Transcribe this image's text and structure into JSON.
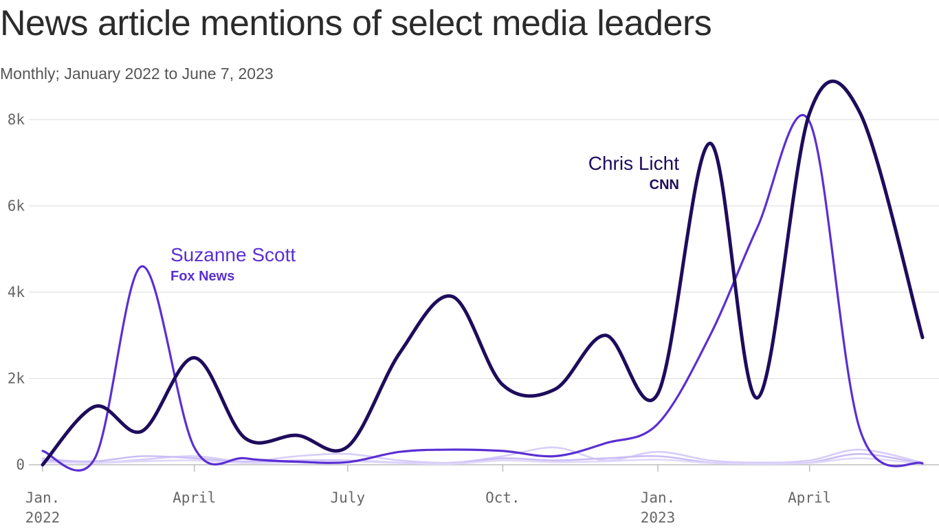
{
  "title": "News article mentions of select media leaders",
  "subtitle": "Monthly; January 2022 to June 7, 2023",
  "chart_data": {
    "type": "line",
    "title": "News article mentions of select media leaders",
    "subtitle": "Monthly; January 2022 to June 7, 2023",
    "xlabel": "",
    "ylabel": "",
    "ylim": [
      0,
      8000
    ],
    "y_ticks": [
      {
        "value": 0,
        "label": "0"
      },
      {
        "value": 2000,
        "label": "2k"
      },
      {
        "value": 4000,
        "label": "4k"
      },
      {
        "value": 6000,
        "label": "6k"
      },
      {
        "value": 8000,
        "label": "8k"
      }
    ],
    "x": [
      "2022-01-01",
      "2022-02-01",
      "2022-03-01",
      "2022-04-01",
      "2022-05-01",
      "2022-06-01",
      "2022-07-01",
      "2022-08-01",
      "2022-09-01",
      "2022-10-01",
      "2022-11-01",
      "2022-12-01",
      "2023-01-01",
      "2023-02-01",
      "2023-03-01",
      "2023-04-01",
      "2023-05-01",
      "2023-06-07"
    ],
    "x_ticks": [
      {
        "x": "2022-01-01",
        "label": "Jan.",
        "sublabel": "2022"
      },
      {
        "x": "2022-04-01",
        "label": "April",
        "sublabel": ""
      },
      {
        "x": "2022-07-01",
        "label": "July",
        "sublabel": ""
      },
      {
        "x": "2022-10-01",
        "label": "Oct.",
        "sublabel": ""
      },
      {
        "x": "2023-01-01",
        "label": "Jan.",
        "sublabel": "2023"
      },
      {
        "x": "2023-04-01",
        "label": "April",
        "sublabel": ""
      }
    ],
    "grid": true,
    "legend": "direct labels",
    "series": [
      {
        "name": "Chris Licht",
        "network": "CNN",
        "color": "#1e0c5c",
        "emphasis": true,
        "values": [
          0,
          1350,
          780,
          2480,
          620,
          680,
          420,
          2600,
          3900,
          1850,
          1750,
          3000,
          1650,
          7450,
          1550,
          8150,
          8150,
          2950
        ]
      },
      {
        "name": "Suzanne Scott",
        "network": "Fox News",
        "color": "#5a2fd3",
        "emphasis": true,
        "values": [
          320,
          150,
          4600,
          400,
          150,
          70,
          60,
          300,
          350,
          320,
          200,
          500,
          950,
          3000,
          5500,
          7950,
          800,
          30
        ]
      },
      {
        "color": "#d7cdfa",
        "emphasis": false,
        "values": [
          150,
          50,
          120,
          200,
          80,
          200,
          250,
          100,
          50,
          200,
          400,
          100,
          300,
          100,
          50,
          100,
          350,
          50
        ]
      },
      {
        "color": "#cbbdf6",
        "emphasis": false,
        "values": [
          100,
          80,
          200,
          150,
          60,
          100,
          100,
          50,
          30,
          150,
          100,
          150,
          200,
          50,
          30,
          50,
          250,
          30
        ]
      },
      {
        "color": "#e0d8fb",
        "emphasis": false,
        "values": [
          60,
          40,
          80,
          100,
          40,
          60,
          80,
          40,
          20,
          100,
          60,
          80,
          120,
          40,
          20,
          40,
          150,
          20
        ]
      }
    ],
    "annotations": [
      {
        "series": "Chris Licht",
        "name": "Chris Licht",
        "network": "CNN"
      },
      {
        "series": "Suzanne Scott",
        "name": "Suzanne Scott",
        "network": "Fox News"
      }
    ]
  }
}
